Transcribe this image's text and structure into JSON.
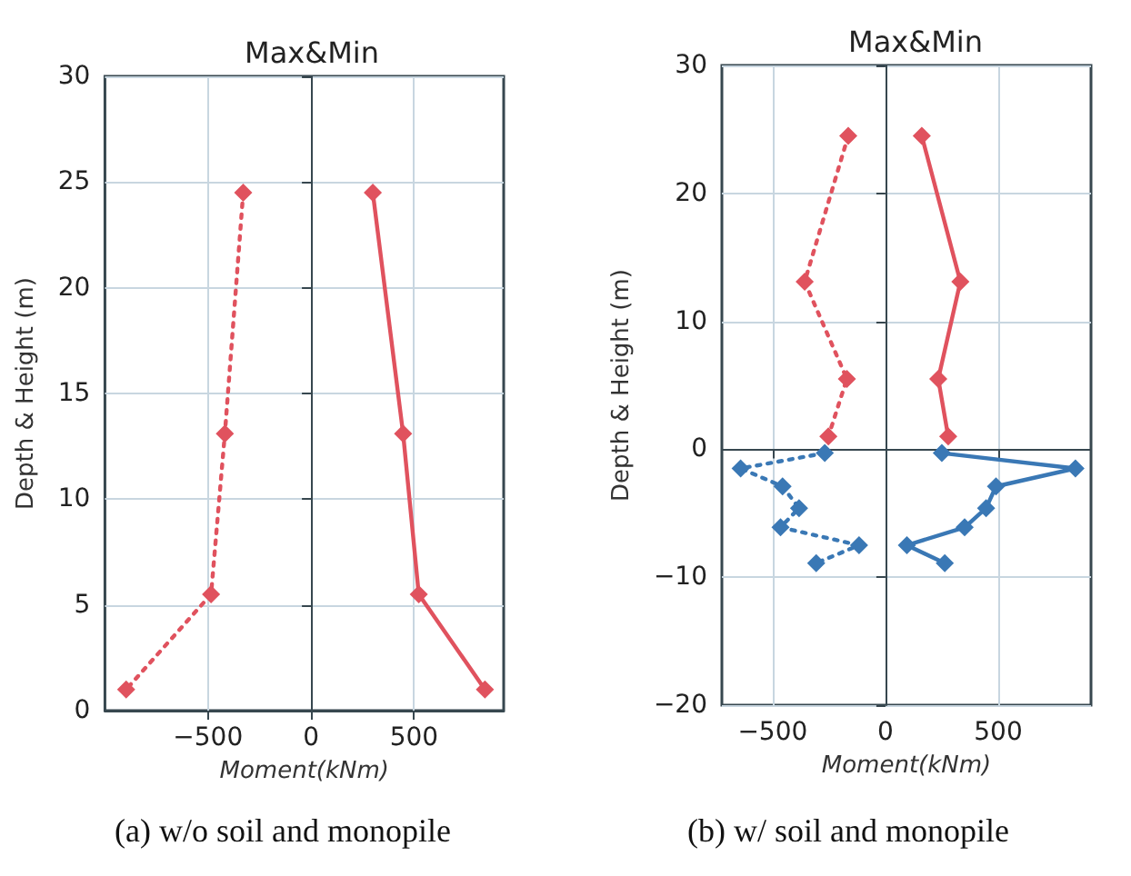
{
  "chart_data": [
    {
      "type": "line",
      "title": "Max&Min",
      "xlabel": "Moment(kNm)",
      "ylabel": "Depth & Height (m)",
      "annotations": [
        "(a) w/o soil and monopile"
      ],
      "xlim": [
        -1000,
        935
      ],
      "xticks": [
        -500,
        0,
        500
      ],
      "ylim": [
        0,
        30
      ],
      "yticks": [
        0,
        5,
        10,
        15,
        20,
        25,
        30
      ],
      "grid": true,
      "marker": "diamond",
      "series": [
        {
          "color": "#e0525e",
          "line_style": "solid",
          "x": [
            300,
            447,
            523,
            844
          ],
          "values": [
            24.5,
            13.1,
            5.5,
            1.0
          ]
        },
        {
          "color": "#e0525e",
          "line_style": "dotted",
          "x": [
            -329,
            -418,
            -485,
            -897
          ],
          "values": [
            24.5,
            13.1,
            5.5,
            1.0
          ]
        }
      ]
    },
    {
      "type": "line",
      "title": "Max&Min",
      "xlabel": "Moment(kNm)",
      "ylabel": "Depth & Height (m)",
      "annotations": [
        "(b) w/ soil and monopile"
      ],
      "xlim": [
        -725,
        911
      ],
      "xticks": [
        -500,
        0,
        500
      ],
      "ylim": [
        -20,
        30
      ],
      "yticks": [
        -20,
        -10,
        0,
        10,
        20,
        30
      ],
      "grid": true,
      "marker": "diamond",
      "series": [
        {
          "color": "#e0525e",
          "line_style": "solid",
          "x": [
            161,
            332,
            234,
            278
          ],
          "values": [
            24.5,
            13.1,
            5.5,
            1.0
          ]
        },
        {
          "color": "#e0525e",
          "line_style": "dotted",
          "x": [
            -165,
            -358,
            -171,
            -253
          ],
          "values": [
            24.5,
            13.1,
            5.5,
            1.0
          ]
        },
        {
          "color": "#3a78b5",
          "line_style": "solid",
          "x": [
            250,
            842,
            490,
            446,
            351,
            95,
            263
          ],
          "values": [
            -0.3,
            -1.5,
            -2.9,
            -4.6,
            -6.1,
            -7.5,
            -8.9
          ]
        },
        {
          "color": "#3a78b5",
          "line_style": "dotted",
          "x": [
            -269,
            -642,
            -456,
            -383,
            -465,
            -117,
            -307
          ],
          "values": [
            -0.3,
            -1.5,
            -2.9,
            -4.6,
            -6.1,
            -7.5,
            -8.9
          ]
        }
      ]
    }
  ]
}
